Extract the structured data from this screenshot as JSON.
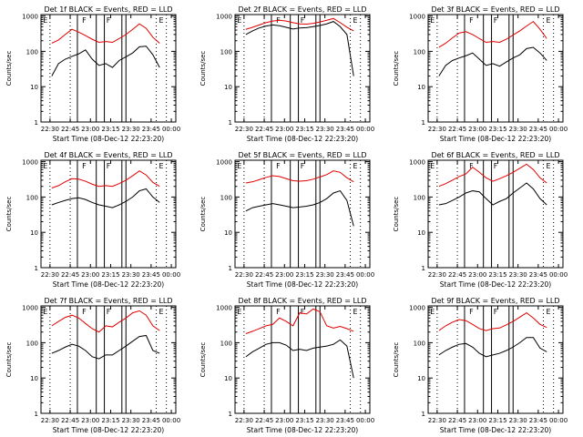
{
  "colors": {
    "events": "#000000",
    "lld": "#e00000"
  },
  "chart_data": [
    {
      "type": "line",
      "title": "Det 1f BLACK = Events, RED = LLD",
      "xlabel": "Start Time (08-Dec-12 22:23:20)",
      "ylabel": "Counts/sec",
      "xlim": [
        "22:23:20",
        "00:03:20"
      ],
      "ylim": [
        1,
        1100
      ],
      "yscale": "log",
      "xticks": [
        "22:30",
        "22:45",
        "23:00",
        "23:15",
        "23:30",
        "23:45",
        "00:00"
      ],
      "yticks": [
        "1",
        "10",
        "100",
        "1000"
      ],
      "markers": [
        "E",
        "F",
        "F",
        "E"
      ],
      "series": [
        {
          "name": "BLACK = Events",
          "color": "#000000",
          "x": [
            0,
            5,
            10,
            15,
            20,
            25,
            30,
            35,
            40,
            45,
            50,
            55,
            60,
            65,
            70,
            75,
            80
          ],
          "y": [
            20,
            45,
            60,
            72,
            85,
            110,
            60,
            40,
            45,
            35,
            55,
            70,
            90,
            135,
            140,
            80,
            35
          ]
        },
        {
          "name": "RED = LLD",
          "color": "#e00000",
          "x": [
            0,
            5,
            10,
            15,
            20,
            25,
            30,
            35,
            40,
            45,
            50,
            55,
            60,
            65,
            70,
            75,
            80
          ],
          "y": [
            170,
            210,
            300,
            420,
            350,
            280,
            220,
            180,
            190,
            180,
            230,
            300,
            420,
            600,
            450,
            250,
            170
          ]
        }
      ]
    },
    {
      "type": "line",
      "title": "Det 2f BLACK = Events, RED = LLD",
      "xlabel": "Start Time (08-Dec-12 22:23:20)",
      "ylabel": "Counts/sec",
      "xlim": [
        "22:23:20",
        "00:03:20"
      ],
      "ylim": [
        1,
        1100
      ],
      "yscale": "log",
      "xticks": [
        "22:30",
        "22:45",
        "23:00",
        "23:15",
        "23:30",
        "23:45",
        "00:00"
      ],
      "yticks": [
        "1",
        "10",
        "100",
        "1000"
      ],
      "markers": [
        "E",
        "F",
        "F",
        "E"
      ],
      "series": [
        {
          "name": "BLACK = Events",
          "color": "#000000",
          "x": [
            0,
            5,
            10,
            15,
            20,
            25,
            30,
            35,
            40,
            45,
            50,
            55,
            60,
            65,
            70,
            75,
            80
          ],
          "y": [
            300,
            380,
            460,
            520,
            560,
            530,
            480,
            430,
            460,
            470,
            500,
            540,
            600,
            700,
            500,
            300,
            20
          ]
        },
        {
          "name": "RED = LLD",
          "color": "#e00000",
          "x": [
            0,
            5,
            10,
            15,
            20,
            25,
            30,
            35,
            40,
            45,
            50,
            55,
            60,
            65,
            70,
            75,
            80
          ],
          "y": [
            420,
            480,
            560,
            650,
            720,
            760,
            720,
            650,
            600,
            590,
            620,
            680,
            760,
            850,
            650,
            480,
            380
          ]
        }
      ]
    },
    {
      "type": "line",
      "title": "Det 3f BLACK = Events, RED = LLD",
      "xlabel": "Start Time (08-Dec-12 22:23:20)",
      "ylabel": "Counts/sec",
      "xlim": [
        "22:23:20",
        "00:03:20"
      ],
      "ylim": [
        1,
        1100
      ],
      "yscale": "log",
      "xticks": [
        "22:30",
        "22:45",
        "23:00",
        "23:15",
        "23:30",
        "23:45",
        "00:00"
      ],
      "yticks": [
        "1",
        "10",
        "100",
        "1000"
      ],
      "markers": [
        "E",
        "F",
        "F",
        "E"
      ],
      "series": [
        {
          "name": "BLACK = Events",
          "color": "#000000",
          "x": [
            0,
            5,
            10,
            15,
            20,
            25,
            30,
            35,
            40,
            45,
            50,
            55,
            60,
            65,
            70,
            75,
            80
          ],
          "y": [
            20,
            40,
            55,
            65,
            75,
            90,
            60,
            40,
            45,
            38,
            50,
            65,
            80,
            120,
            130,
            90,
            55
          ]
        },
        {
          "name": "RED = LLD",
          "color": "#e00000",
          "x": [
            0,
            5,
            10,
            15,
            20,
            25,
            30,
            35,
            40,
            45,
            50,
            55,
            60,
            65,
            70,
            75,
            80
          ],
          "y": [
            130,
            170,
            240,
            330,
            360,
            300,
            230,
            180,
            190,
            180,
            220,
            290,
            380,
            520,
            700,
            420,
            230
          ]
        }
      ]
    },
    {
      "type": "line",
      "title": "Det 4f BLACK = Events, RED = LLD",
      "xlabel": "Start Time (08-Dec-12 22:23:20)",
      "ylabel": "Counts/sec",
      "xlim": [
        "22:23:20",
        "00:03:20"
      ],
      "ylim": [
        1,
        1100
      ],
      "yscale": "log",
      "xticks": [
        "22:30",
        "22:45",
        "23:00",
        "23:15",
        "23:30",
        "23:45",
        "00:00"
      ],
      "yticks": [
        "1",
        "10",
        "100",
        "1000"
      ],
      "markers": [
        "E",
        "F",
        "F",
        "E"
      ],
      "series": [
        {
          "name": "BLACK = Events",
          "color": "#000000",
          "x": [
            0,
            5,
            10,
            15,
            20,
            25,
            30,
            35,
            40,
            45,
            50,
            55,
            60,
            65,
            70,
            75,
            80
          ],
          "y": [
            60,
            70,
            80,
            90,
            95,
            85,
            70,
            60,
            55,
            50,
            60,
            75,
            100,
            150,
            170,
            100,
            70
          ]
        },
        {
          "name": "RED = LLD",
          "color": "#e00000",
          "x": [
            0,
            5,
            10,
            15,
            20,
            25,
            30,
            35,
            40,
            45,
            50,
            55,
            60,
            65,
            70,
            75,
            80
          ],
          "y": [
            180,
            210,
            270,
            330,
            320,
            280,
            230,
            200,
            210,
            200,
            240,
            300,
            400,
            550,
            420,
            260,
            200
          ]
        }
      ]
    },
    {
      "type": "line",
      "title": "Det 5f BLACK = Events, RED = LLD",
      "xlabel": "Start Time (08-Dec-12 22:23:20)",
      "ylabel": "Counts/sec",
      "xlim": [
        "22:23:20",
        "00:03:20"
      ],
      "ylim": [
        1,
        1100
      ],
      "yscale": "log",
      "xticks": [
        "22:30",
        "22:45",
        "23:00",
        "23:15",
        "23:30",
        "23:45",
        "00:00"
      ],
      "yticks": [
        "1",
        "10",
        "100",
        "1000"
      ],
      "markers": [
        "E",
        "F",
        "F",
        "E"
      ],
      "series": [
        {
          "name": "BLACK = Events",
          "color": "#000000",
          "x": [
            0,
            5,
            10,
            15,
            20,
            25,
            30,
            35,
            40,
            45,
            50,
            55,
            60,
            65,
            70,
            75,
            80
          ],
          "y": [
            40,
            50,
            55,
            60,
            65,
            60,
            55,
            50,
            52,
            55,
            60,
            70,
            90,
            130,
            150,
            80,
            15
          ]
        },
        {
          "name": "RED = LLD",
          "color": "#e00000",
          "x": [
            0,
            5,
            10,
            15,
            20,
            25,
            30,
            35,
            40,
            45,
            50,
            55,
            60,
            65,
            70,
            75,
            80
          ],
          "y": [
            250,
            270,
            310,
            360,
            400,
            380,
            330,
            290,
            280,
            290,
            320,
            370,
            430,
            550,
            500,
            350,
            270
          ]
        }
      ]
    },
    {
      "type": "line",
      "title": "Det 6f BLACK = Events, RED = LLD",
      "xlabel": "Start Time (08-Dec-12 22:23:20)",
      "ylabel": "Counts/sec",
      "xlim": [
        "22:23:20",
        "00:03:20"
      ],
      "ylim": [
        1,
        1100
      ],
      "yscale": "log",
      "xticks": [
        "22:30",
        "22:45",
        "23:00",
        "23:15",
        "23:30",
        "23:45",
        "00:00"
      ],
      "yticks": [
        "1",
        "10",
        "100",
        "1000"
      ],
      "markers": [
        "E",
        "F",
        "F",
        "E"
      ],
      "series": [
        {
          "name": "BLACK = Events",
          "color": "#000000",
          "x": [
            0,
            5,
            10,
            15,
            20,
            25,
            30,
            35,
            40,
            45,
            50,
            55,
            60,
            65,
            70,
            75,
            80
          ],
          "y": [
            60,
            65,
            80,
            100,
            130,
            150,
            140,
            90,
            60,
            75,
            90,
            130,
            180,
            250,
            170,
            90,
            60
          ]
        },
        {
          "name": "RED = LLD",
          "color": "#e00000",
          "x": [
            0,
            5,
            10,
            15,
            20,
            25,
            30,
            35,
            40,
            45,
            50,
            55,
            60,
            65,
            70,
            75,
            80
          ],
          "y": [
            200,
            240,
            300,
            380,
            450,
            700,
            500,
            350,
            280,
            330,
            400,
            500,
            650,
            850,
            600,
            350,
            250
          ]
        }
      ]
    },
    {
      "type": "line",
      "title": "Det 7f BLACK = Events, RED = LLD",
      "xlabel": "Start Time (08-Dec-12 22:23:20)",
      "ylabel": "Counts/sec",
      "xlim": [
        "22:23:20",
        "00:03:20"
      ],
      "ylim": [
        1,
        1100
      ],
      "yscale": "log",
      "xticks": [
        "22:30",
        "22:45",
        "23:00",
        "23:15",
        "23:30",
        "23:45",
        "00:00"
      ],
      "yticks": [
        "1",
        "10",
        "100",
        "1000"
      ],
      "markers": [
        "E",
        "F",
        "F",
        "E"
      ],
      "series": [
        {
          "name": "BLACK = Events",
          "color": "#000000",
          "x": [
            0,
            5,
            10,
            15,
            20,
            25,
            30,
            35,
            40,
            45,
            50,
            55,
            60,
            65,
            70,
            75,
            80
          ],
          "y": [
            50,
            60,
            75,
            90,
            80,
            60,
            40,
            35,
            45,
            45,
            60,
            80,
            110,
            150,
            160,
            60,
            50
          ]
        },
        {
          "name": "RED = LLD",
          "color": "#e00000",
          "x": [
            0,
            5,
            10,
            15,
            20,
            25,
            30,
            35,
            40,
            45,
            50,
            55,
            60,
            65,
            70,
            75,
            80
          ],
          "y": [
            300,
            400,
            520,
            600,
            500,
            350,
            250,
            200,
            300,
            280,
            380,
            500,
            700,
            800,
            600,
            300,
            220
          ]
        }
      ]
    },
    {
      "type": "line",
      "title": "Det 8f BLACK = Events, RED = LLD",
      "xlabel": "Start Time (08-Dec-12 22:23:20)",
      "ylabel": "Counts/sec",
      "xlim": [
        "22:23:20",
        "00:03:20"
      ],
      "ylim": [
        1,
        1100
      ],
      "yscale": "log",
      "xticks": [
        "22:30",
        "22:45",
        "23:00",
        "23:15",
        "23:30",
        "23:45",
        "00:00"
      ],
      "yticks": [
        "1",
        "10",
        "100",
        "1000"
      ],
      "markers": [
        "E",
        "F",
        "F",
        "E"
      ],
      "series": [
        {
          "name": "BLACK = Events",
          "color": "#000000",
          "x": [
            0,
            5,
            10,
            15,
            20,
            25,
            30,
            35,
            40,
            45,
            50,
            55,
            60,
            65,
            70,
            75,
            80
          ],
          "y": [
            40,
            55,
            70,
            90,
            100,
            100,
            85,
            60,
            65,
            60,
            70,
            75,
            80,
            90,
            120,
            80,
            10
          ]
        },
        {
          "name": "RED = LLD",
          "color": "#e00000",
          "x": [
            0,
            5,
            10,
            15,
            20,
            25,
            30,
            35,
            40,
            45,
            50,
            55,
            60,
            65,
            70,
            75,
            80
          ],
          "y": [
            180,
            210,
            250,
            300,
            330,
            500,
            400,
            300,
            700,
            650,
            900,
            750,
            300,
            260,
            290,
            250,
            210
          ]
        }
      ]
    },
    {
      "type": "line",
      "title": "Det 9f BLACK = Events, RED = LLD",
      "xlabel": "Start Time (08-Dec-12 22:23:20)",
      "ylabel": "Counts/sec",
      "xlim": [
        "22:23:20",
        "00:03:20"
      ],
      "ylim": [
        1,
        1100
      ],
      "yscale": "log",
      "xticks": [
        "22:30",
        "22:45",
        "23:00",
        "23:15",
        "23:30",
        "23:45",
        "00:00"
      ],
      "yticks": [
        "1",
        "10",
        "100",
        "1000"
      ],
      "markers": [
        "E",
        "F",
        "F",
        "E"
      ],
      "series": [
        {
          "name": "BLACK = Events",
          "color": "#000000",
          "x": [
            0,
            5,
            10,
            15,
            20,
            25,
            30,
            35,
            40,
            45,
            50,
            55,
            60,
            65,
            70,
            75,
            80
          ],
          "y": [
            45,
            60,
            75,
            90,
            95,
            75,
            50,
            40,
            45,
            50,
            60,
            75,
            100,
            140,
            140,
            70,
            55
          ]
        },
        {
          "name": "RED = LLD",
          "color": "#e00000",
          "x": [
            0,
            5,
            10,
            15,
            20,
            25,
            30,
            35,
            40,
            45,
            50,
            55,
            60,
            65,
            70,
            75,
            80
          ],
          "y": [
            220,
            300,
            380,
            450,
            420,
            330,
            250,
            220,
            250,
            260,
            320,
            400,
            530,
            700,
            500,
            330,
            270
          ]
        }
      ]
    }
  ]
}
